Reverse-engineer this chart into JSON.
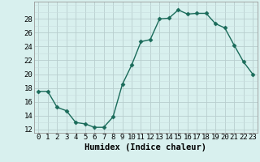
{
  "x": [
    0,
    1,
    2,
    3,
    4,
    5,
    6,
    7,
    8,
    9,
    10,
    11,
    12,
    13,
    14,
    15,
    16,
    17,
    18,
    19,
    20,
    21,
    22,
    23
  ],
  "y": [
    17.5,
    17.5,
    15.2,
    14.7,
    13.0,
    12.8,
    12.3,
    12.3,
    13.8,
    18.5,
    21.3,
    24.7,
    25.0,
    28.0,
    28.1,
    29.3,
    28.7,
    28.8,
    28.8,
    27.3,
    26.7,
    24.2,
    21.8,
    20.0
  ],
  "line_color": "#1a6b5a",
  "marker": "D",
  "markersize": 2.5,
  "linewidth": 1.0,
  "bg_color": "#d8f0ee",
  "grid_major_color": "#b8cece",
  "grid_minor_color": "#c8dede",
  "xlabel": "Humidex (Indice chaleur)",
  "xlim": [
    -0.5,
    23.5
  ],
  "ylim": [
    11.5,
    30.5
  ],
  "yticks": [
    12,
    14,
    16,
    18,
    20,
    22,
    24,
    26,
    28
  ],
  "xtick_labels": [
    "0",
    "1",
    "2",
    "3",
    "4",
    "5",
    "6",
    "7",
    "8",
    "9",
    "10",
    "11",
    "12",
    "13",
    "14",
    "15",
    "16",
    "17",
    "18",
    "19",
    "20",
    "21",
    "22",
    "23"
  ],
  "tick_fontsize": 6.5,
  "xlabel_fontsize": 7.5
}
